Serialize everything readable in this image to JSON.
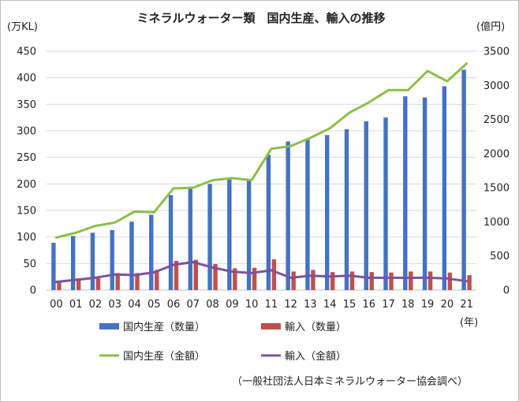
{
  "chart_data": {
    "type": "bar+line",
    "title": "ミネラルウォーター類　国内生産、輸入の推移",
    "y_left_unit": "(万KL)",
    "y_right_unit": "(億円)",
    "x_unit": "(年)",
    "categories": [
      "00",
      "01",
      "02",
      "03",
      "04",
      "05",
      "06",
      "07",
      "08",
      "09",
      "10",
      "11",
      "12",
      "13",
      "14",
      "15",
      "16",
      "17",
      "18",
      "19",
      "20",
      "21"
    ],
    "y_left": {
      "min": 0,
      "max": 450,
      "step": 50,
      "ticks": [
        "0",
        "50",
        "100",
        "150",
        "200",
        "250",
        "300",
        "350",
        "400",
        "450"
      ]
    },
    "y_right": {
      "min": 0,
      "max": 3500,
      "step": 500,
      "ticks": [
        "0",
        "500",
        "1000",
        "1500",
        "2000",
        "2500",
        "3000",
        "3500"
      ]
    },
    "series": [
      {
        "name": "国内生産（数量）",
        "type": "bar",
        "axis": "left",
        "color": "#4472c4",
        "values": [
          89,
          102,
          108,
          113,
          129,
          142,
          179,
          192,
          200,
          210,
          207,
          255,
          280,
          285,
          292,
          303,
          318,
          325,
          365,
          363,
          384,
          415
        ]
      },
      {
        "name": "輸入（数量）",
        "type": "bar",
        "axis": "left",
        "color": "#c0504d",
        "values": [
          18,
          22,
          22,
          32,
          32,
          38,
          55,
          57,
          49,
          41,
          42,
          58,
          35,
          38,
          34,
          35,
          34,
          33,
          35,
          35,
          33,
          28
        ]
      },
      {
        "name": "国内生産（金額）",
        "type": "line",
        "axis": "right",
        "color": "#8cbf4a",
        "values": [
          770,
          840,
          940,
          990,
          1150,
          1140,
          1490,
          1500,
          1610,
          1640,
          1610,
          2070,
          2110,
          2230,
          2370,
          2600,
          2750,
          2930,
          2930,
          3210,
          3060,
          3320
        ]
      },
      {
        "name": "輸入（金額）",
        "type": "line",
        "axis": "right",
        "color": "#7b52a0",
        "values": [
          120,
          150,
          180,
          230,
          220,
          260,
          370,
          410,
          330,
          270,
          250,
          290,
          180,
          210,
          200,
          210,
          180,
          180,
          180,
          180,
          170,
          130
        ]
      }
    ],
    "source": "（一般社団法人日本ミネラルウォーター協会調べ）"
  }
}
